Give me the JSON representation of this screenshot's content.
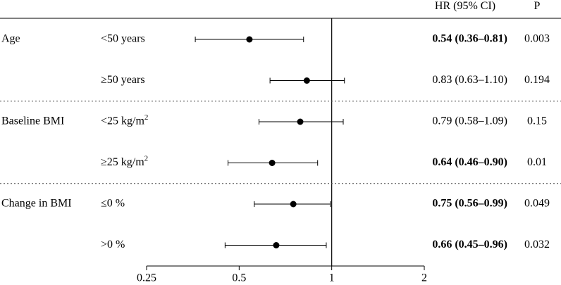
{
  "headers": {
    "hr": "HR (95% CI)",
    "p": "P"
  },
  "chart_data": {
    "type": "forest",
    "x_scale": "log",
    "xlim": [
      0.25,
      2
    ],
    "x_ticks": [
      0.25,
      0.5,
      1,
      2
    ],
    "x_tick_labels": [
      "0.25",
      "0.5",
      "1",
      "2"
    ],
    "reference_line": 1,
    "groups": [
      {
        "label": "Age",
        "rows": [
          {
            "subgroup": "<50 years",
            "hr": 0.54,
            "lo": 0.36,
            "hi": 0.81,
            "hr_text": "0.54 (0.36–0.81)",
            "p": "0.003",
            "bold": true
          },
          {
            "subgroup": "≥50 years",
            "hr": 0.83,
            "lo": 0.63,
            "hi": 1.1,
            "hr_text": "0.83 (0.63–1.10)",
            "p": "0.194",
            "bold": false
          }
        ]
      },
      {
        "label": "Baseline BMI",
        "rows": [
          {
            "subgroup": "<25 kg/m",
            "sup": "2",
            "hr": 0.79,
            "lo": 0.58,
            "hi": 1.09,
            "hr_text": "0.79 (0.58–1.09)",
            "p": "0.15",
            "bold": false
          },
          {
            "subgroup": "≥25 kg/m",
            "sup": "2",
            "hr": 0.64,
            "lo": 0.46,
            "hi": 0.9,
            "hr_text": "0.64 (0.46–0.90)",
            "p": "0.01",
            "bold": true
          }
        ]
      },
      {
        "label": "Change in BMI",
        "rows": [
          {
            "subgroup": "≤0 %",
            "hr": 0.75,
            "lo": 0.56,
            "hi": 0.99,
            "hr_text": "0.75 (0.56–0.99)",
            "p": "0.049",
            "bold": true
          },
          {
            "subgroup": ">0 %",
            "hr": 0.66,
            "lo": 0.45,
            "hi": 0.96,
            "hr_text": "0.66 (0.45–0.96)",
            "p": "0.032",
            "bold": true
          }
        ]
      }
    ]
  }
}
